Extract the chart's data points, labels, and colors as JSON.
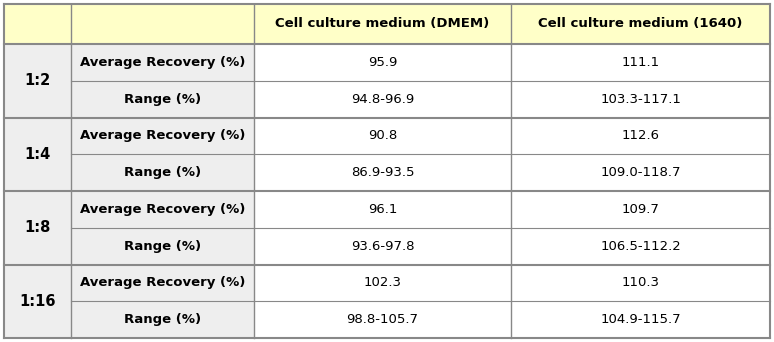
{
  "col_headers": [
    "Cell culture medium (DMEM)",
    "Cell culture medium (1640)"
  ],
  "row_groups": [
    {
      "label": "1:2",
      "rows": [
        {
          "metric": "Average Recovery (%)",
          "dmem": "95.9",
          "rpmi": "111.1"
        },
        {
          "metric": "Range (%)",
          "dmem": "94.8-96.9",
          "rpmi": "103.3-117.1"
        }
      ]
    },
    {
      "label": "1:4",
      "rows": [
        {
          "metric": "Average Recovery (%)",
          "dmem": "90.8",
          "rpmi": "112.6"
        },
        {
          "metric": "Range (%)",
          "dmem": "86.9-93.5",
          "rpmi": "109.0-118.7"
        }
      ]
    },
    {
      "label": "1:8",
      "rows": [
        {
          "metric": "Average Recovery (%)",
          "dmem": "96.1",
          "rpmi": "109.7"
        },
        {
          "metric": "Range (%)",
          "dmem": "93.6-97.8",
          "rpmi": "106.5-112.2"
        }
      ]
    },
    {
      "label": "1:16",
      "rows": [
        {
          "metric": "Average Recovery (%)",
          "dmem": "102.3",
          "rpmi": "110.3"
        },
        {
          "metric": "Range (%)",
          "dmem": "98.8-105.7",
          "rpmi": "104.9-115.7"
        }
      ]
    }
  ],
  "light_yellow": "#FFFFC8",
  "light_gray": "#EEEEEE",
  "white": "#FFFFFF",
  "border_color": "#888888",
  "header_font_size": 9.5,
  "cell_font_size": 9.5,
  "label_font_size": 10.5
}
